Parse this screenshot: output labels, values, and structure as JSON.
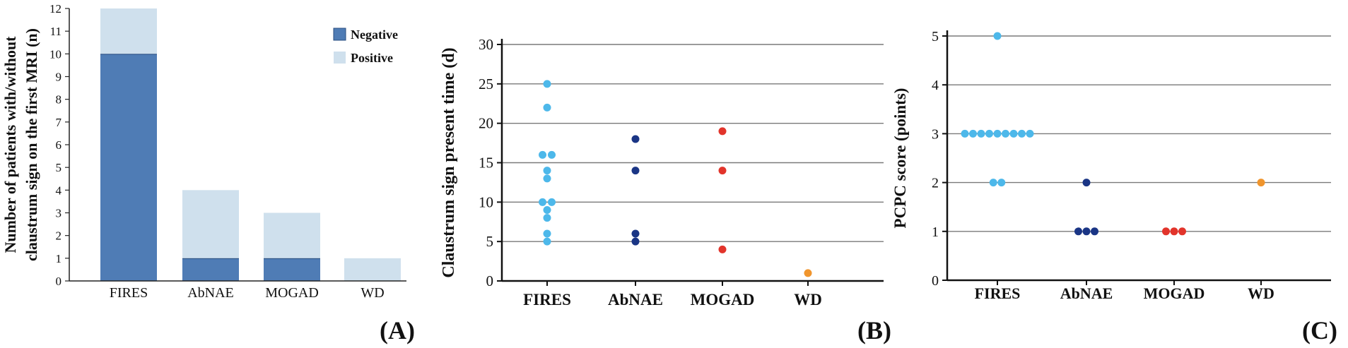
{
  "colors": {
    "negative": "#4f7cb5",
    "positive": "#cfe0ed",
    "FIRES": "#4db8ea",
    "AbNAE": "#1a3585",
    "MOGAD": "#e2342b",
    "WD": "#f0952d",
    "gridline": "#7a7a7a"
  },
  "panels": {
    "A": "(A)",
    "B": "(B)",
    "C": "(C)"
  },
  "chart_data": [
    {
      "type": "bar",
      "stacked": true,
      "panel": "(A)",
      "ylabel_lines": [
        "Number of patients with/without",
        "claustrum sign on the first MRI (n)"
      ],
      "categories": [
        "FIRES",
        "AbNAE",
        "MOGAD",
        "WD"
      ],
      "series": [
        {
          "name": "Negative",
          "values": [
            10,
            1,
            1,
            0
          ]
        },
        {
          "name": "Positive",
          "values": [
            2,
            3,
            2,
            1
          ]
        }
      ],
      "ylim": [
        0,
        12
      ],
      "yticks": [
        "0",
        "1",
        "2",
        "3",
        "4",
        "5",
        "6",
        "7",
        "8",
        "9",
        "10",
        "11",
        "12"
      ],
      "legend_position": "top-right",
      "grid": false
    },
    {
      "type": "scatter",
      "panel": "(B)",
      "ylabel": "Claustrum sign present time (d)",
      "categories": [
        "FIRES",
        "AbNAE",
        "MOGAD",
        "WD"
      ],
      "ylim": [
        0,
        30
      ],
      "yticks": [
        "0",
        "5",
        "10",
        "15",
        "20",
        "25",
        "30"
      ],
      "grid": true,
      "points": [
        {
          "category": "FIRES",
          "values": [
            25,
            22,
            16,
            16,
            14,
            13,
            10,
            10,
            9,
            8,
            6,
            5
          ]
        },
        {
          "category": "AbNAE",
          "values": [
            18,
            14,
            6,
            5
          ]
        },
        {
          "category": "MOGAD",
          "values": [
            19,
            14,
            4
          ]
        },
        {
          "category": "WD",
          "values": [
            1
          ]
        }
      ]
    },
    {
      "type": "scatter",
      "panel": "(C)",
      "ylabel": "PCPC score (points)",
      "categories": [
        "FIRES",
        "AbNAE",
        "MOGAD",
        "WD"
      ],
      "ylim": [
        0,
        5
      ],
      "yticks": [
        "0",
        "1",
        "2",
        "3",
        "4",
        "5"
      ],
      "grid": true,
      "points": [
        {
          "category": "FIRES",
          "values": [
            5,
            3,
            3,
            3,
            3,
            3,
            3,
            3,
            3,
            3,
            2,
            2
          ]
        },
        {
          "category": "AbNAE",
          "values": [
            2,
            1,
            1,
            1
          ]
        },
        {
          "category": "MOGAD",
          "values": [
            1,
            1,
            1
          ]
        },
        {
          "category": "WD",
          "values": [
            2
          ]
        }
      ]
    }
  ]
}
